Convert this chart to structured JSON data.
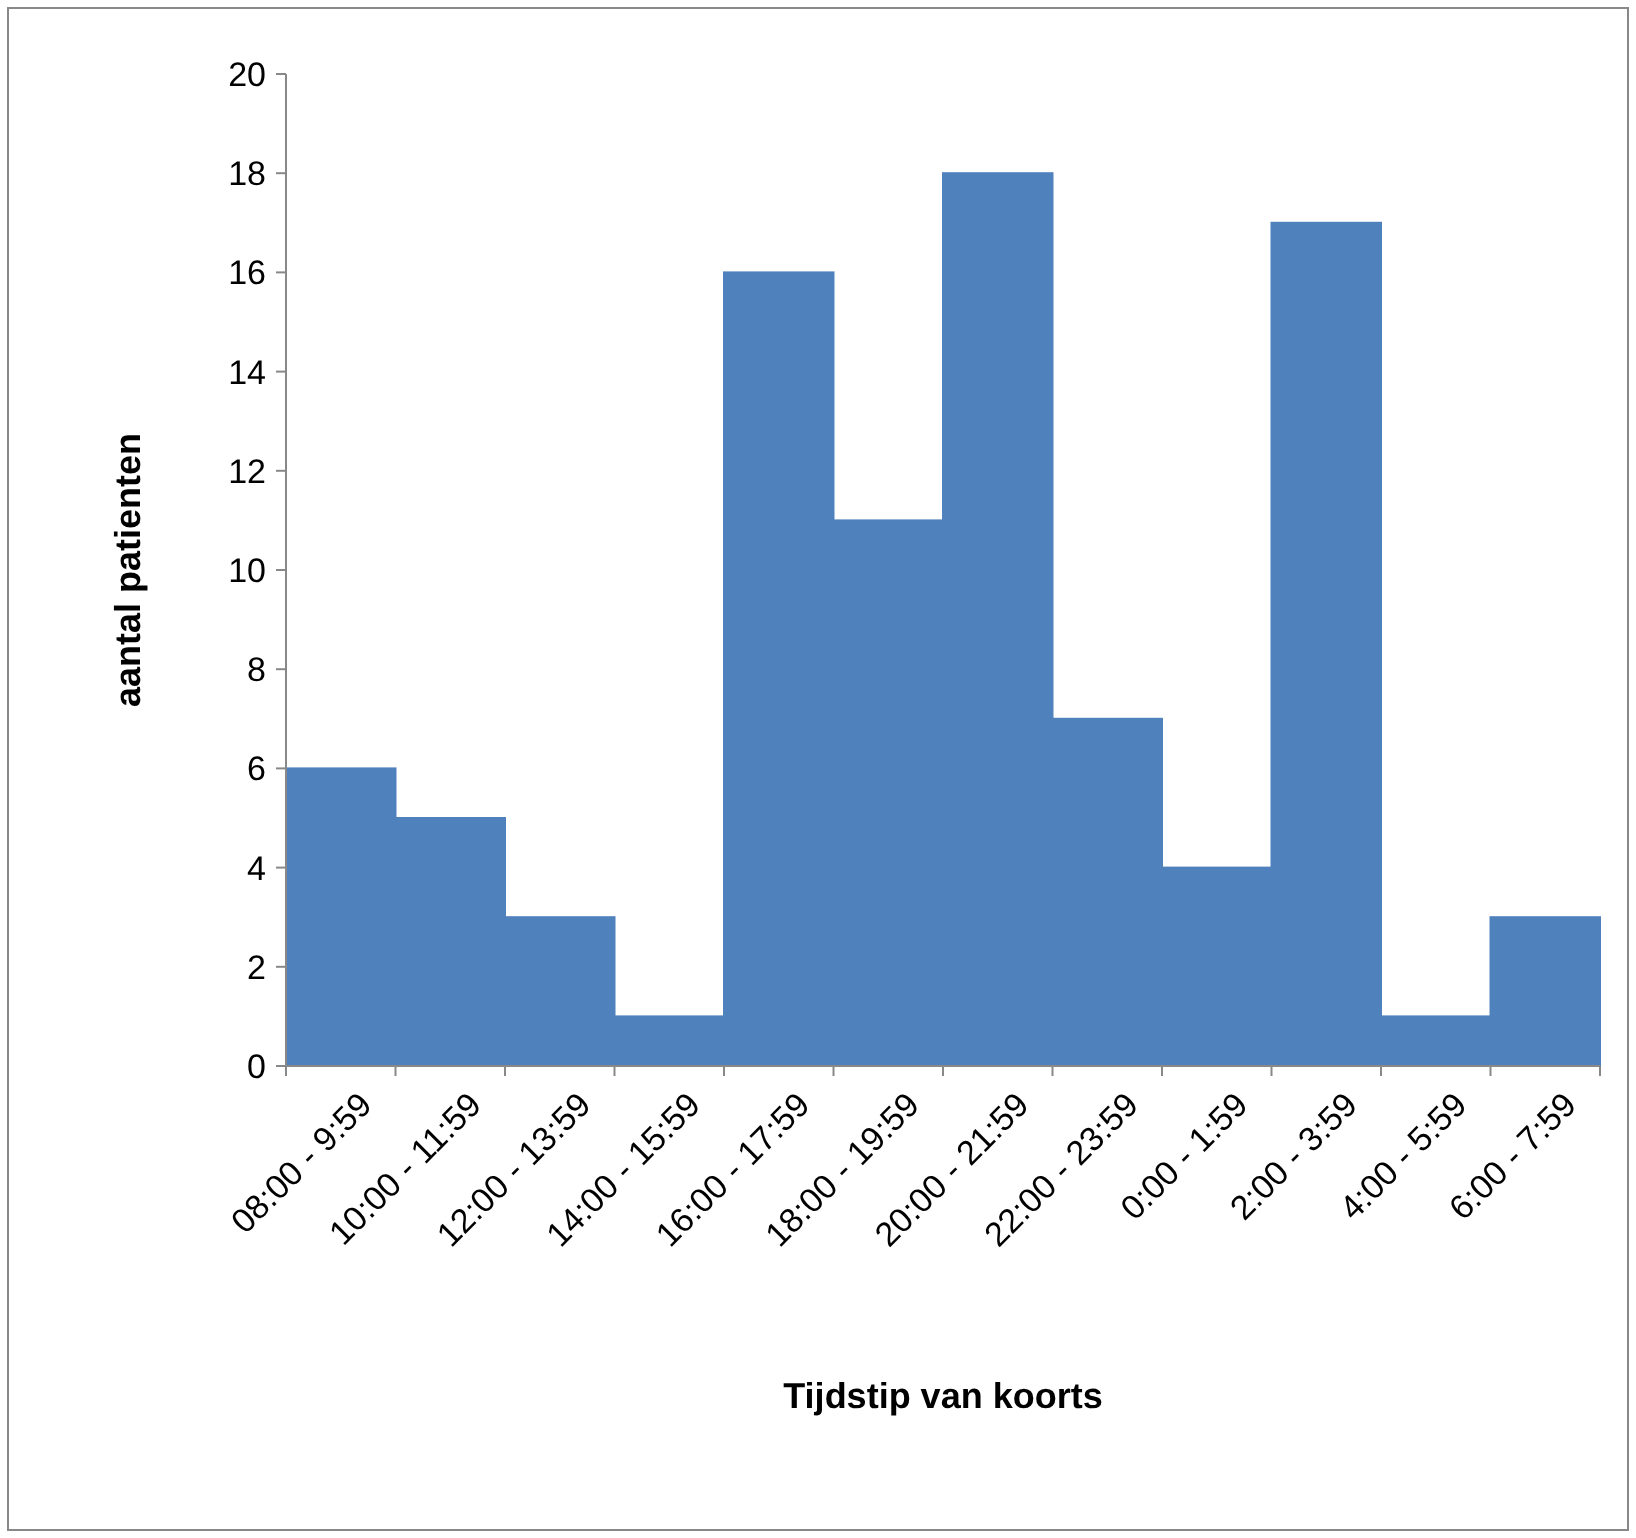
{
  "chart_data": {
    "type": "bar",
    "xlabel": "Tijdstip van koorts",
    "ylabel": "aantal patienten",
    "categories": [
      "08:00 - 9:59",
      "10:00 - 11:59",
      "12:00 - 13:59",
      "14:00 - 15:59",
      "16:00 - 17:59",
      "18:00 - 19:59",
      "20:00 - 21:59",
      "22:00 - 23:59",
      "0:00 - 1:59",
      "2:00 - 3:59",
      "4:00 - 5:59",
      "6:00 - 7:59"
    ],
    "values": [
      6,
      5,
      3,
      1,
      16,
      11,
      18,
      7,
      4,
      17,
      1,
      3
    ],
    "color": "#4f81bd",
    "ylim": [
      0,
      20
    ],
    "yticks": [
      0,
      2,
      4,
      6,
      8,
      10,
      12,
      14,
      16,
      18,
      20
    ],
    "grid": false
  }
}
